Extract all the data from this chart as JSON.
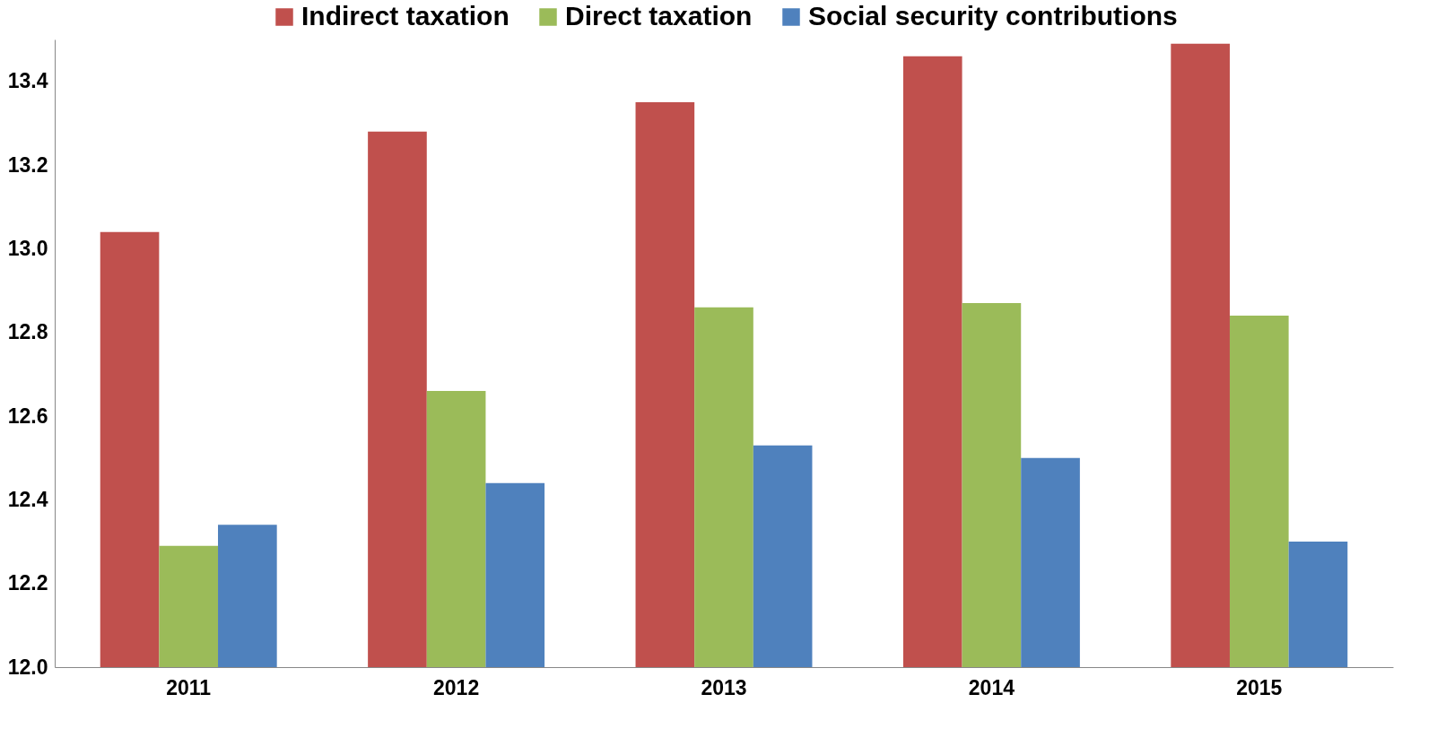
{
  "chart_data": {
    "type": "bar",
    "categories": [
      "2011",
      "2012",
      "2013",
      "2014",
      "2015"
    ],
    "series": [
      {
        "name": "Indirect taxation",
        "color": "#c0504d",
        "values": [
          13.04,
          13.28,
          13.35,
          13.46,
          13.49
        ]
      },
      {
        "name": "Direct taxation",
        "color": "#9bbb59",
        "values": [
          12.29,
          12.66,
          12.86,
          12.87,
          12.84
        ]
      },
      {
        "name": "Social security contributions",
        "color": "#4f81bd",
        "values": [
          12.34,
          12.44,
          12.53,
          12.5,
          12.3
        ]
      }
    ],
    "ylim": [
      12,
      13.5
    ],
    "yticks": [
      {
        "value": 12,
        "label": "12.0"
      },
      {
        "value": 12.2,
        "label": "12.2"
      },
      {
        "value": 12.4,
        "label": "12.4"
      },
      {
        "value": 12.6,
        "label": "12.6"
      },
      {
        "value": 12.8,
        "label": "12.8"
      },
      {
        "value": 13,
        "label": "13.0"
      },
      {
        "value": 13.2,
        "label": "13.2"
      },
      {
        "value": 13.4,
        "label": "13.4"
      }
    ],
    "grid": false,
    "legend": "top"
  }
}
